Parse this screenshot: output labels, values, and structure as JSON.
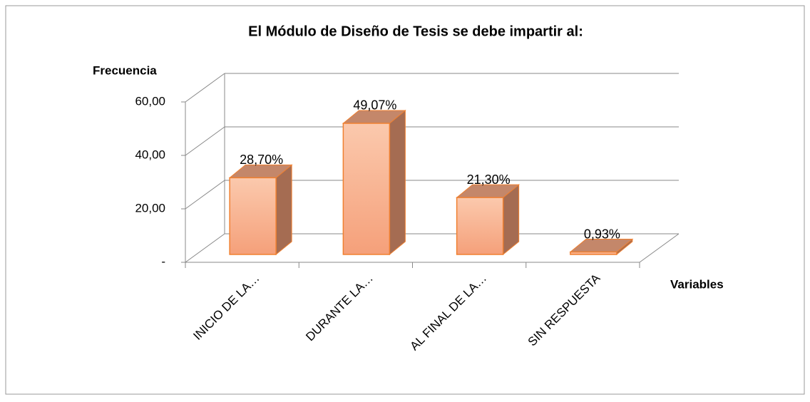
{
  "chart_data": {
    "type": "bar3d",
    "title": "El Módulo de Diseño de Tesis se debe impartir al:",
    "y_label": "Frecuencia",
    "x_label": "Variables",
    "categories": [
      "INICIO DE LA…",
      "DURANTE LA…",
      "AL FINAL DE LA…",
      "SIN RESPUESTA"
    ],
    "values": [
      28.7,
      49.07,
      21.3,
      0.93
    ],
    "value_labels": [
      "28,70%",
      "49,07%",
      "21,30%",
      "0,93%"
    ],
    "color": "#f7b08e",
    "ylim": [
      0,
      60
    ],
    "yticks": [
      {
        "value": 0,
        "label": "-"
      },
      {
        "value": 20,
        "label": "20,00"
      },
      {
        "value": 40,
        "label": "40,00"
      },
      {
        "value": 60,
        "label": "60,00"
      }
    ],
    "grid": true
  }
}
